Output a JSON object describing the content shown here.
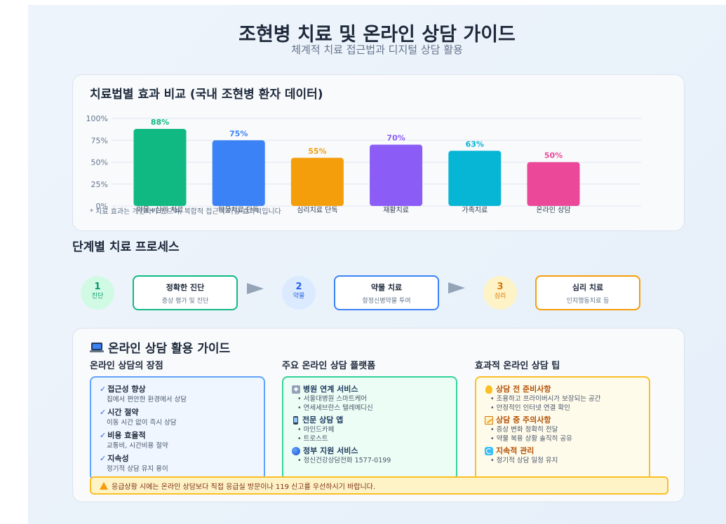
{
  "header": {
    "title": "조현병 치료 및 온라인 상담 가이드",
    "subtitle": "체계적 치료 접근법과 디지털 상담 활용"
  },
  "chart_section": {
    "title": "치료법별 효과 비교 (국내 조현병 환자 데이터)",
    "footnote": "* 치료 효과는 개인차가 있으며, 복합적 접근이 가장 효과적입니다"
  },
  "chart_data": {
    "type": "bar",
    "categories": [
      "약물+심리 치료",
      "약물치료 단독",
      "심리치료 단독",
      "재활치료",
      "가족치료",
      "온라인 상담"
    ],
    "values": [
      88,
      75,
      55,
      70,
      63,
      50
    ],
    "value_labels": [
      "88%",
      "75%",
      "55%",
      "70%",
      "63%",
      "50%"
    ],
    "colors": [
      "#10b981",
      "#3b82f6",
      "#f59e0b",
      "#8b5cf6",
      "#06b6d4",
      "#ec4899"
    ],
    "yticks": [
      "0%",
      "25%",
      "50%",
      "75%",
      "100%"
    ],
    "ylim": [
      0,
      100
    ],
    "grid": true
  },
  "process": {
    "title": "단계별 치료 프로세스",
    "steps": [
      {
        "num": "1",
        "label": "진단",
        "title": "정확한 진단",
        "desc": "증상 평가 및 진단"
      },
      {
        "num": "2",
        "label": "약물",
        "title": "약물 치료",
        "desc": "항정신병약물 투여"
      },
      {
        "num": "3",
        "label": "심리",
        "title": "심리 치료",
        "desc": "인지행동치료 등"
      }
    ]
  },
  "guide": {
    "title": "온라인 상담 활용 가이드",
    "icon": "laptop-icon",
    "advantages": {
      "title": "온라인 상담의 장점",
      "items": [
        {
          "check": "✓",
          "title": "접근성 향상",
          "desc": "집에서 편안한 환경에서 상담"
        },
        {
          "check": "✓",
          "title": "시간 절약",
          "desc": "이동 시간 없이 즉시 상담"
        },
        {
          "check": "✓",
          "title": "비용 효율적",
          "desc": "교통비, 시간비용 절약"
        },
        {
          "check": "✓",
          "title": "지속성",
          "desc": "정기적 상담 유지 용이"
        }
      ]
    },
    "platforms": {
      "title": "주요 온라인 상담 플랫폼",
      "groups": [
        {
          "icon": "hospital-icon",
          "title": "병원 연계 서비스",
          "items": [
            "• 서울대병원 스마트케어",
            "• 연세세브란스 텔레메디신"
          ]
        },
        {
          "icon": "mobile-phone-icon",
          "title": "전문 상담 앱",
          "items": [
            "• 마인드카페",
            "• 트로스트"
          ]
        },
        {
          "icon": "globe-icon",
          "title": "정부 지원 서비스",
          "items": [
            "• 정신건강상담전화 1577-0199"
          ]
        }
      ]
    },
    "tips": {
      "title": "효과적 온라인 상담 팁",
      "groups": [
        {
          "icon": "lightbulb-icon",
          "title": "상담 전 준비사항",
          "items": [
            "• 조용하고 프라이버시가 보장되는 공간",
            "• 안정적인 인터넷 연결 확인"
          ]
        },
        {
          "icon": "memo-icon",
          "title": "상담 중 주의사항",
          "items": [
            "• 증상 변화 정확히 전달",
            "• 약물 복용 상황 솔직히 공유"
          ]
        },
        {
          "icon": "refresh-icon",
          "title": "지속적 관리",
          "items": [
            "• 정기적 상담 일정 유지"
          ]
        }
      ]
    },
    "warning": "응급상황 시에는 온라인 상담보다 직접 응급실 방문이나 119 신고를 우선하시기 바랍니다."
  }
}
